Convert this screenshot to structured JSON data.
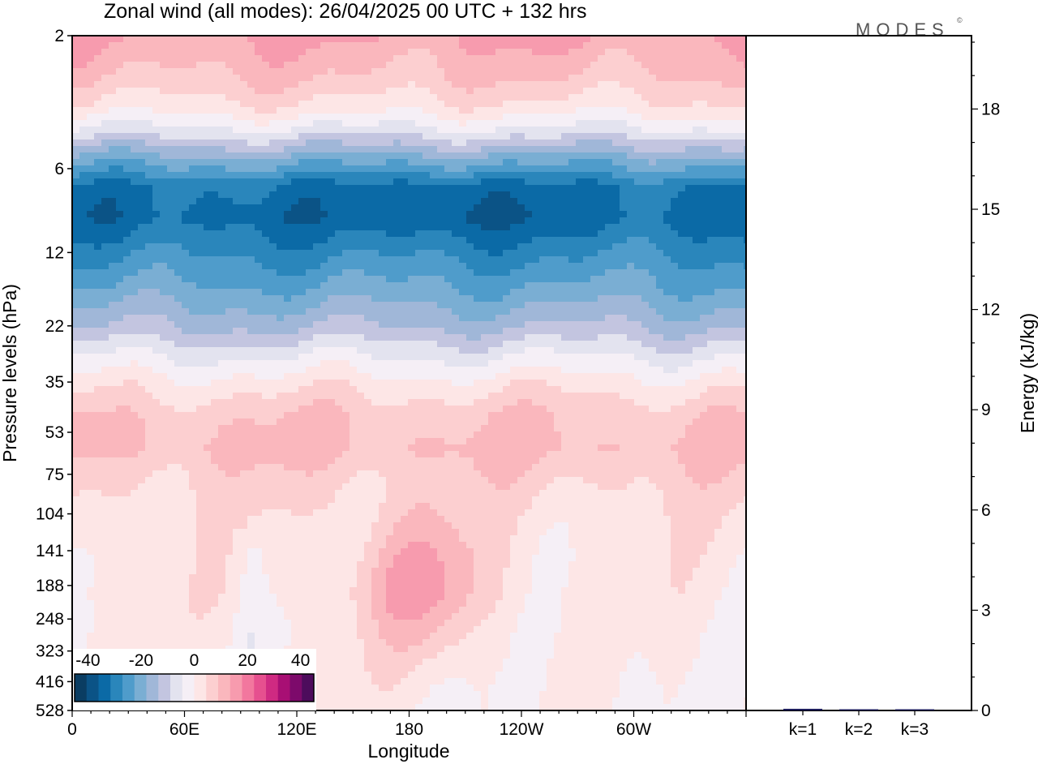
{
  "colors": {
    "scale": [
      "#0a3d62",
      "#0b5386",
      "#0b6aa6",
      "#2a86bb",
      "#4f9ccb",
      "#7aaed3",
      "#a0b7d8",
      "#c3c5e0",
      "#e3e3ef",
      "#f5eff6",
      "#fde6e6",
      "#fccfd0",
      "#fab7bd",
      "#f79bae",
      "#f2779e",
      "#e6508f",
      "#cf2a82",
      "#a80f74",
      "#7d0a6b",
      "#4d0c5c"
    ],
    "frame": "#000000"
  },
  "chart_data": [
    {
      "type": "heatmap",
      "title": "Zonal wind (all modes):  26/04/2025  00 UTC  + 132 hrs",
      "xlabel": "Longitude",
      "ylabel": "Pressure levels (hPa)",
      "x_ticks": [
        "0",
        "60E",
        "120E",
        "180",
        "120W",
        "60W"
      ],
      "y_ticks": [
        "2",
        "6",
        "12",
        "22",
        "35",
        "53",
        "75",
        "104",
        "141",
        "188",
        "248",
        "323",
        "416",
        "528"
      ],
      "y_scale": "log",
      "x_range": [
        0,
        360
      ],
      "colorbar": {
        "labels": [
          "-40",
          "-20",
          "0",
          "20",
          "40"
        ],
        "min": -45,
        "max": 45,
        "step": 4.5,
        "placement": "bottom-left"
      },
      "approx_levels": [
        {
          "p": 2,
          "u": 14
        },
        {
          "p": 2.8,
          "u": 9
        },
        {
          "p": 3.6,
          "u": 3
        },
        {
          "p": 4.4,
          "u": -6
        },
        {
          "p": 5.4,
          "u": -18
        },
        {
          "p": 7,
          "u": -32
        },
        {
          "p": 9,
          "u": -34
        },
        {
          "p": 12,
          "u": -28
        },
        {
          "p": 16,
          "u": -22
        },
        {
          "p": 22,
          "u": -14
        },
        {
          "p": 28,
          "u": -5
        },
        {
          "p": 35,
          "u": 2
        },
        {
          "p": 45,
          "u": 8
        },
        {
          "p": 60,
          "u": 10
        },
        {
          "p": 80,
          "u": 6
        },
        {
          "p": 110,
          "u": 3
        },
        {
          "p": 150,
          "u": 2
        },
        {
          "p": 200,
          "u": 2
        },
        {
          "p": 260,
          "u": 1
        },
        {
          "p": 330,
          "u": 1
        },
        {
          "p": 420,
          "u": 0.5
        },
        {
          "p": 528,
          "u": 0.5
        }
      ],
      "jet_feature": {
        "lon_range": [
          150,
          220
        ],
        "p_range": [
          104,
          330
        ],
        "u_core": 15
      }
    },
    {
      "type": "bar",
      "ylabel": "Energy (kJ/kg)",
      "categories": [
        "k=1",
        "k=2",
        "k=3"
      ],
      "values": [
        0.05,
        0.03,
        0.03
      ],
      "ylim": [
        0,
        20
      ],
      "y_ticks": [
        "0",
        "3",
        "6",
        "9",
        "12",
        "15",
        "18"
      ]
    }
  ],
  "logo": {
    "text": "MODES",
    "mark": "©"
  }
}
